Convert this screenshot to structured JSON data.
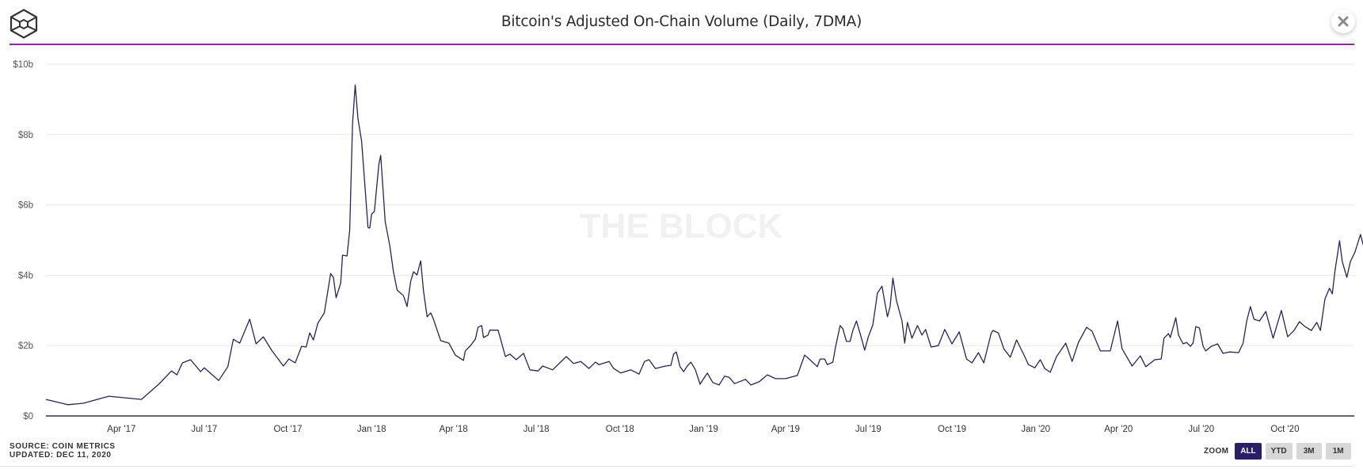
{
  "header": {
    "title": "Bitcoin's Adjusted On-Chain Volume (Daily, 7DMA)",
    "logo": "the-block-cube-logo",
    "close_icon": "close-icon"
  },
  "watermark": "THE BLOCK",
  "footer": {
    "source": "SOURCE: COIN METRICS",
    "updated": "UPDATED: DEC 11, 2020"
  },
  "zoom_controls": {
    "label": "ZOOM",
    "buttons": [
      {
        "label": "ALL",
        "active": true
      },
      {
        "label": "YTD",
        "active": false
      },
      {
        "label": "3M",
        "active": false
      },
      {
        "label": "1M",
        "active": false
      }
    ]
  },
  "colors": {
    "line": "#2a2450",
    "accent_rule": "#8a2aa8",
    "active_button": "#2a1f66",
    "gridline": "#e8e8e8",
    "axis": "#333333"
  },
  "chart_data": {
    "type": "line",
    "title": "Bitcoin's Adjusted On-Chain Volume (Daily, 7DMA)",
    "xlabel": "",
    "ylabel": "",
    "unit": "USD billions",
    "ylim": [
      0,
      10
    ],
    "yticks": [
      0,
      2,
      4,
      6,
      8,
      10
    ],
    "ytick_labels": [
      "$0",
      "$2b",
      "$4b",
      "$6b",
      "$8b",
      "$10b"
    ],
    "xlim": [
      "2017-01-08",
      "2020-12-11"
    ],
    "xticks": [
      "2017-04-01",
      "2017-07-01",
      "2017-10-01",
      "2018-01-01",
      "2018-04-01",
      "2018-07-01",
      "2018-10-01",
      "2019-01-01",
      "2019-04-01",
      "2019-07-01",
      "2019-10-01",
      "2020-01-01",
      "2020-04-01",
      "2020-07-01",
      "2020-10-01"
    ],
    "xtick_labels": [
      "Apr '17",
      "Jul '17",
      "Oct '17",
      "Jan '18",
      "Apr '18",
      "Jul '18",
      "Oct '18",
      "Jan '19",
      "Apr '19",
      "Jul '19",
      "Oct '19",
      "Jan '20",
      "Apr '20",
      "Jul '20",
      "Oct '20"
    ],
    "grid": true,
    "legend": "none",
    "series": [
      {
        "name": "Adjusted On-Chain Volume (7DMA)",
        "points": [
          [
            "2017-01-08",
            0.47
          ],
          [
            "2017-02-01",
            0.32
          ],
          [
            "2017-02-18",
            0.36
          ],
          [
            "2017-03-18",
            0.56
          ],
          [
            "2017-04-23",
            0.47
          ],
          [
            "2017-05-12",
            0.9
          ],
          [
            "2017-05-26",
            1.28
          ],
          [
            "2017-06-01",
            1.17
          ],
          [
            "2017-06-07",
            1.51
          ],
          [
            "2017-06-16",
            1.6
          ],
          [
            "2017-06-27",
            1.26
          ],
          [
            "2017-07-01",
            1.37
          ],
          [
            "2017-07-17",
            1.01
          ],
          [
            "2017-07-27",
            1.4
          ],
          [
            "2017-08-02",
            2.18
          ],
          [
            "2017-08-09",
            2.07
          ],
          [
            "2017-08-20",
            2.75
          ],
          [
            "2017-08-27",
            2.05
          ],
          [
            "2017-09-04",
            2.25
          ],
          [
            "2017-09-13",
            1.87
          ],
          [
            "2017-09-26",
            1.42
          ],
          [
            "2017-10-02",
            1.62
          ],
          [
            "2017-10-09",
            1.51
          ],
          [
            "2017-10-16",
            1.98
          ],
          [
            "2017-10-21",
            1.96
          ],
          [
            "2017-10-25",
            2.36
          ],
          [
            "2017-10-29",
            2.16
          ],
          [
            "2017-11-03",
            2.64
          ],
          [
            "2017-11-10",
            2.93
          ],
          [
            "2017-11-17",
            4.05
          ],
          [
            "2017-11-20",
            3.94
          ],
          [
            "2017-11-23",
            3.36
          ],
          [
            "2017-11-28",
            3.78
          ],
          [
            "2017-11-30",
            4.57
          ],
          [
            "2017-12-05",
            4.55
          ],
          [
            "2017-12-08",
            5.29
          ],
          [
            "2017-12-11",
            8.29
          ],
          [
            "2017-12-14",
            9.41
          ],
          [
            "2017-12-17",
            8.45
          ],
          [
            "2017-12-21",
            7.81
          ],
          [
            "2017-12-25",
            6.42
          ],
          [
            "2017-12-28",
            5.36
          ],
          [
            "2017-12-30",
            5.34
          ],
          [
            "2018-01-01",
            5.74
          ],
          [
            "2018-01-04",
            5.81
          ],
          [
            "2018-01-06",
            6.35
          ],
          [
            "2018-01-09",
            7.16
          ],
          [
            "2018-01-11",
            7.41
          ],
          [
            "2018-01-16",
            5.52
          ],
          [
            "2018-01-21",
            4.84
          ],
          [
            "2018-01-25",
            4.1
          ],
          [
            "2018-01-29",
            3.58
          ],
          [
            "2018-02-05",
            3.42
          ],
          [
            "2018-02-09",
            3.11
          ],
          [
            "2018-02-13",
            3.83
          ],
          [
            "2018-02-16",
            4.1
          ],
          [
            "2018-02-20",
            4.01
          ],
          [
            "2018-02-24",
            4.41
          ],
          [
            "2018-02-27",
            3.56
          ],
          [
            "2018-03-03",
            2.82
          ],
          [
            "2018-03-07",
            2.93
          ],
          [
            "2018-03-10",
            2.75
          ],
          [
            "2018-03-18",
            2.14
          ],
          [
            "2018-03-27",
            2.07
          ],
          [
            "2018-04-03",
            1.73
          ],
          [
            "2018-04-12",
            1.58
          ],
          [
            "2018-04-14",
            1.85
          ],
          [
            "2018-04-19",
            1.98
          ],
          [
            "2018-04-25",
            2.18
          ],
          [
            "2018-04-28",
            2.52
          ],
          [
            "2018-05-02",
            2.57
          ],
          [
            "2018-05-04",
            2.23
          ],
          [
            "2018-05-09",
            2.3
          ],
          [
            "2018-05-11",
            2.44
          ],
          [
            "2018-05-20",
            2.44
          ],
          [
            "2018-05-25",
            1.98
          ],
          [
            "2018-05-28",
            1.69
          ],
          [
            "2018-06-02",
            1.76
          ],
          [
            "2018-06-09",
            1.6
          ],
          [
            "2018-06-17",
            1.78
          ],
          [
            "2018-06-24",
            1.31
          ],
          [
            "2018-07-03",
            1.28
          ],
          [
            "2018-07-08",
            1.42
          ],
          [
            "2018-07-19",
            1.31
          ],
          [
            "2018-08-03",
            1.69
          ],
          [
            "2018-08-11",
            1.49
          ],
          [
            "2018-08-19",
            1.55
          ],
          [
            "2018-08-28",
            1.35
          ],
          [
            "2018-09-04",
            1.53
          ],
          [
            "2018-09-08",
            1.46
          ],
          [
            "2018-09-19",
            1.55
          ],
          [
            "2018-09-24",
            1.35
          ],
          [
            "2018-10-02",
            1.22
          ],
          [
            "2018-10-13",
            1.31
          ],
          [
            "2018-10-22",
            1.19
          ],
          [
            "2018-10-28",
            1.55
          ],
          [
            "2018-11-02",
            1.6
          ],
          [
            "2018-11-09",
            1.35
          ],
          [
            "2018-11-20",
            1.42
          ],
          [
            "2018-11-26",
            1.44
          ],
          [
            "2018-11-29",
            1.76
          ],
          [
            "2018-12-02",
            1.82
          ],
          [
            "2018-12-06",
            1.4
          ],
          [
            "2018-12-10",
            1.26
          ],
          [
            "2018-12-14",
            1.42
          ],
          [
            "2018-12-18",
            1.53
          ],
          [
            "2018-12-23",
            1.31
          ],
          [
            "2018-12-28",
            0.9
          ],
          [
            "2019-01-05",
            1.22
          ],
          [
            "2019-01-11",
            0.95
          ],
          [
            "2019-01-18",
            0.88
          ],
          [
            "2019-01-24",
            1.13
          ],
          [
            "2019-01-29",
            1.1
          ],
          [
            "2019-02-04",
            0.92
          ],
          [
            "2019-02-16",
            1.04
          ],
          [
            "2019-02-22",
            0.88
          ],
          [
            "2019-03-03",
            0.97
          ],
          [
            "2019-03-12",
            1.17
          ],
          [
            "2019-03-21",
            1.06
          ],
          [
            "2019-04-01",
            1.06
          ],
          [
            "2019-04-14",
            1.15
          ],
          [
            "2019-04-22",
            1.73
          ],
          [
            "2019-04-27",
            1.62
          ],
          [
            "2019-05-06",
            1.4
          ],
          [
            "2019-05-09",
            1.62
          ],
          [
            "2019-05-14",
            1.62
          ],
          [
            "2019-05-17",
            1.46
          ],
          [
            "2019-05-23",
            1.53
          ],
          [
            "2019-05-26",
            1.96
          ],
          [
            "2019-05-31",
            2.57
          ],
          [
            "2019-06-03",
            2.48
          ],
          [
            "2019-06-07",
            2.12
          ],
          [
            "2019-06-11",
            2.12
          ],
          [
            "2019-06-14",
            2.43
          ],
          [
            "2019-06-18",
            2.7
          ],
          [
            "2019-06-23",
            2.25
          ],
          [
            "2019-06-27",
            1.87
          ],
          [
            "2019-07-01",
            2.25
          ],
          [
            "2019-07-06",
            2.59
          ],
          [
            "2019-07-11",
            3.49
          ],
          [
            "2019-07-16",
            3.69
          ],
          [
            "2019-07-22",
            2.82
          ],
          [
            "2019-07-25",
            3.11
          ],
          [
            "2019-07-28",
            3.92
          ],
          [
            "2019-08-01",
            3.27
          ],
          [
            "2019-08-07",
            2.7
          ],
          [
            "2019-08-10",
            2.07
          ],
          [
            "2019-08-13",
            2.66
          ],
          [
            "2019-08-18",
            2.21
          ],
          [
            "2019-08-24",
            2.57
          ],
          [
            "2019-08-29",
            2.3
          ],
          [
            "2019-09-02",
            2.46
          ],
          [
            "2019-09-08",
            1.96
          ],
          [
            "2019-09-16",
            2.0
          ],
          [
            "2019-09-23",
            2.46
          ],
          [
            "2019-10-01",
            2.05
          ],
          [
            "2019-10-09",
            2.39
          ],
          [
            "2019-10-17",
            1.62
          ],
          [
            "2019-10-23",
            1.51
          ],
          [
            "2019-10-30",
            1.8
          ],
          [
            "2019-11-05",
            1.51
          ],
          [
            "2019-11-13",
            2.34
          ],
          [
            "2019-11-15",
            2.43
          ],
          [
            "2019-11-21",
            2.36
          ],
          [
            "2019-11-27",
            1.91
          ],
          [
            "2019-12-04",
            1.67
          ],
          [
            "2019-12-11",
            2.16
          ],
          [
            "2019-12-20",
            1.69
          ],
          [
            "2019-12-24",
            1.46
          ],
          [
            "2019-12-31",
            1.37
          ],
          [
            "2020-01-06",
            1.6
          ],
          [
            "2020-01-11",
            1.35
          ],
          [
            "2020-01-17",
            1.24
          ],
          [
            "2020-01-24",
            1.69
          ],
          [
            "2020-02-03",
            2.07
          ],
          [
            "2020-02-10",
            1.55
          ],
          [
            "2020-02-17",
            2.09
          ],
          [
            "2020-02-26",
            2.52
          ],
          [
            "2020-03-03",
            2.41
          ],
          [
            "2020-03-12",
            1.85
          ],
          [
            "2020-03-23",
            1.85
          ],
          [
            "2020-03-31",
            2.7
          ],
          [
            "2020-04-05",
            1.91
          ],
          [
            "2020-04-16",
            1.42
          ],
          [
            "2020-04-25",
            1.71
          ],
          [
            "2020-05-01",
            1.4
          ],
          [
            "2020-05-11",
            1.6
          ],
          [
            "2020-05-18",
            1.62
          ],
          [
            "2020-05-21",
            2.21
          ],
          [
            "2020-05-26",
            2.34
          ],
          [
            "2020-05-28",
            2.23
          ],
          [
            "2020-06-03",
            2.79
          ],
          [
            "2020-06-06",
            2.3
          ],
          [
            "2020-06-11",
            2.05
          ],
          [
            "2020-06-15",
            2.09
          ],
          [
            "2020-06-19",
            1.98
          ],
          [
            "2020-06-22",
            2.07
          ],
          [
            "2020-06-25",
            2.54
          ],
          [
            "2020-06-29",
            2.5
          ],
          [
            "2020-07-03",
            1.98
          ],
          [
            "2020-07-06",
            1.85
          ],
          [
            "2020-07-12",
            1.98
          ],
          [
            "2020-07-19",
            2.05
          ],
          [
            "2020-07-25",
            1.78
          ],
          [
            "2020-08-01",
            1.82
          ],
          [
            "2020-08-11",
            1.8
          ],
          [
            "2020-08-16",
            2.07
          ],
          [
            "2020-08-20",
            2.7
          ],
          [
            "2020-08-24",
            3.11
          ],
          [
            "2020-08-28",
            2.75
          ],
          [
            "2020-09-03",
            2.7
          ],
          [
            "2020-09-10",
            2.97
          ],
          [
            "2020-09-18",
            2.21
          ],
          [
            "2020-09-27",
            3.0
          ],
          [
            "2020-10-04",
            2.25
          ],
          [
            "2020-10-11",
            2.43
          ],
          [
            "2020-10-17",
            2.68
          ],
          [
            "2020-10-23",
            2.54
          ],
          [
            "2020-10-30",
            2.43
          ],
          [
            "2020-11-05",
            2.66
          ],
          [
            "2020-11-09",
            2.43
          ],
          [
            "2020-11-14",
            3.33
          ],
          [
            "2020-11-19",
            3.63
          ],
          [
            "2020-11-22",
            3.47
          ],
          [
            "2020-11-25",
            4.12
          ],
          [
            "2020-11-30",
            4.98
          ],
          [
            "2020-12-03",
            4.39
          ],
          [
            "2020-12-08",
            3.94
          ],
          [
            "2020-12-12",
            4.39
          ],
          [
            "2020-12-17",
            4.66
          ],
          [
            "2020-12-23",
            5.16
          ],
          [
            "2020-12-27",
            4.77
          ],
          [
            "2020-12-30",
            4.17
          ]
        ]
      }
    ]
  }
}
